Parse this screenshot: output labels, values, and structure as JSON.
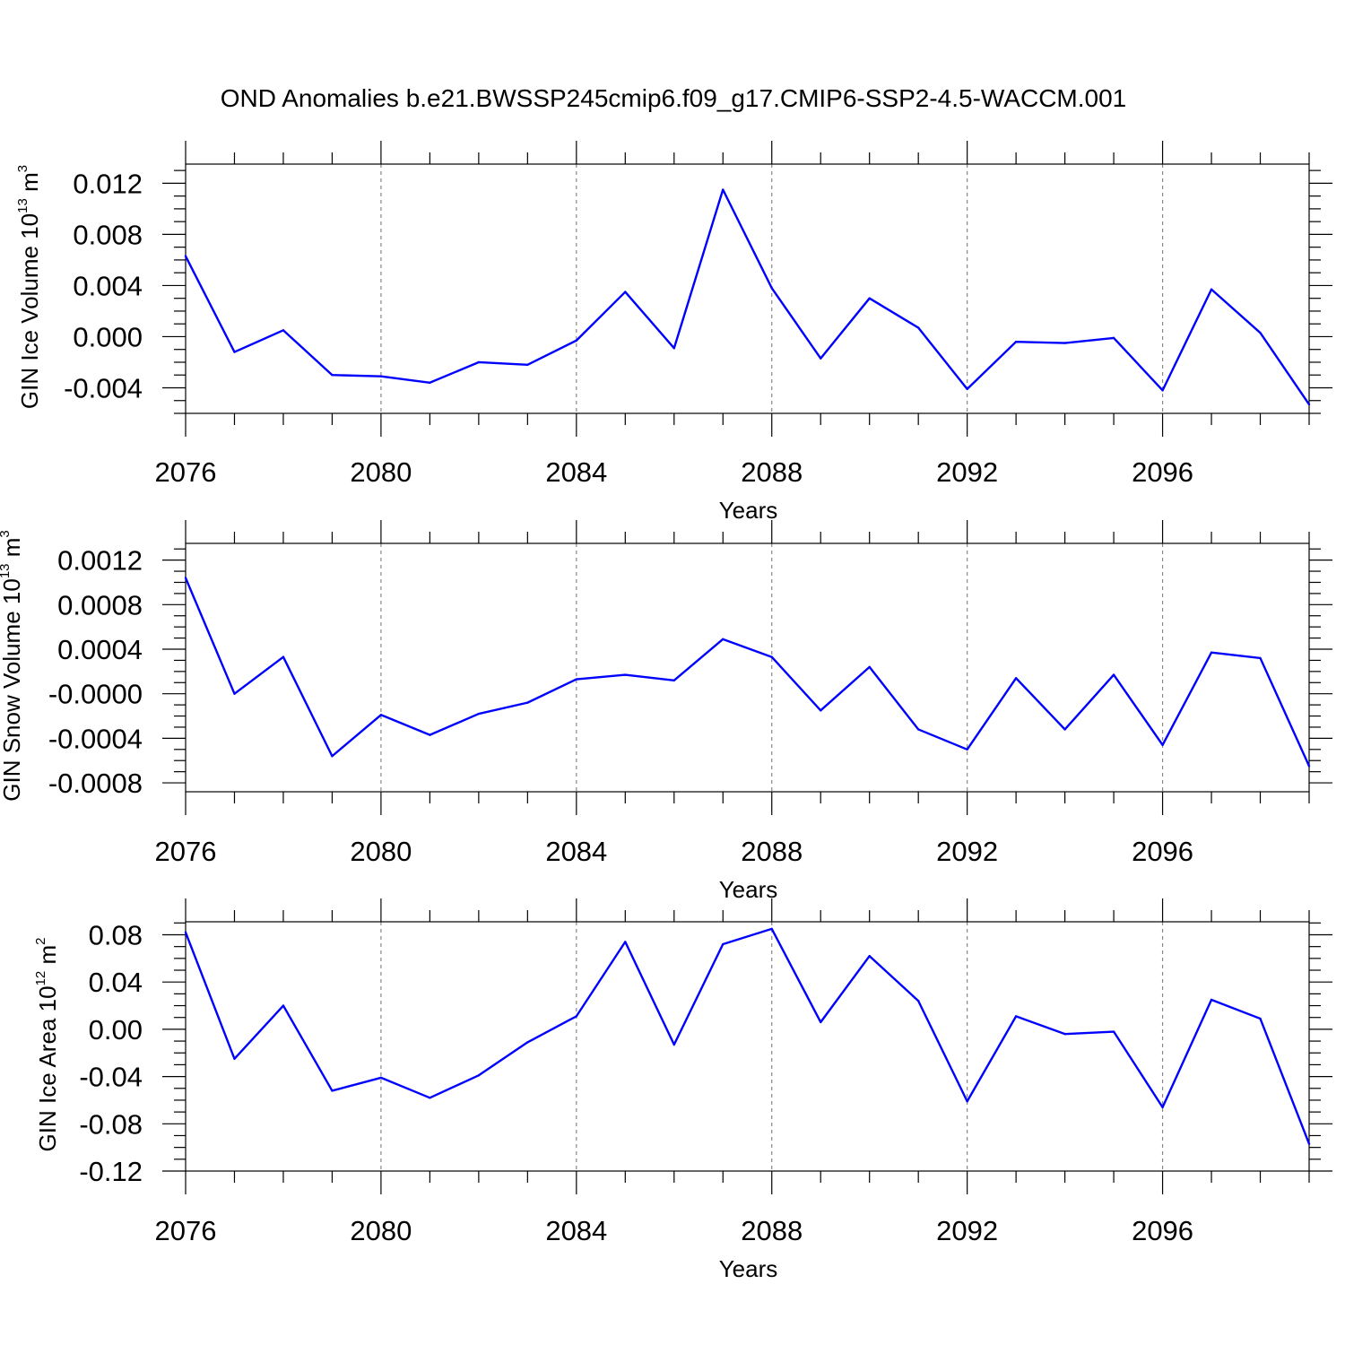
{
  "title": "OND Anomalies b.e21.BWSSP245cmip6.f09_g17.CMIP6-SSP2-4.5-WACCM.001",
  "chart_data": [
    {
      "type": "line",
      "panel": "ice-volume",
      "ylabel_main": "GIN Ice Volume 10",
      "ylabel_exp": "13",
      "ylabel_unit": " m",
      "ylabel_unit_exp": "3",
      "xlabel": "Years",
      "x": [
        2076,
        2077,
        2078,
        2079,
        2080,
        2081,
        2082,
        2083,
        2084,
        2085,
        2086,
        2087,
        2088,
        2089,
        2090,
        2091,
        2092,
        2093,
        2094,
        2095,
        2096,
        2097,
        2098,
        2099
      ],
      "values": [
        0.0063,
        -0.0012,
        0.0005,
        -0.003,
        -0.0031,
        -0.0036,
        -0.002,
        -0.0022,
        -0.0003,
        0.0035,
        -0.0009,
        0.0115,
        0.0038,
        -0.0017,
        0.003,
        0.0007,
        -0.0041,
        -0.0004,
        -0.0005,
        -0.0001,
        -0.0042,
        0.0037,
        0.0003,
        -0.0053
      ],
      "xlim": [
        2076,
        2099
      ],
      "ylim": [
        -0.006,
        0.0135
      ],
      "xticks": [
        2076,
        2080,
        2084,
        2088,
        2092,
        2096
      ],
      "xtick_labels": [
        "2076",
        "2080",
        "2084",
        "2088",
        "2092",
        "2096"
      ],
      "yticks": [
        -0.004,
        0.0,
        0.004,
        0.008,
        0.012
      ],
      "ytick_labels": [
        "-0.004",
        "0.000",
        "0.004",
        "0.008",
        "0.012"
      ],
      "yminor": 0.001
    },
    {
      "type": "line",
      "panel": "snow-volume",
      "ylabel_main": "GIN Snow Volume 10",
      "ylabel_exp": "13",
      "ylabel_unit": " m",
      "ylabel_unit_exp": "3",
      "xlabel": "Years",
      "x": [
        2076,
        2077,
        2078,
        2079,
        2080,
        2081,
        2082,
        2083,
        2084,
        2085,
        2086,
        2087,
        2088,
        2089,
        2090,
        2091,
        2092,
        2093,
        2094,
        2095,
        2096,
        2097,
        2098,
        2099
      ],
      "values": [
        0.00104,
        0.0,
        0.00033,
        -0.00056,
        -0.00019,
        -0.00037,
        -0.00018,
        -8e-05,
        0.00013,
        0.00017,
        0.00012,
        0.00049,
        0.00033,
        -0.00015,
        0.00024,
        -0.00032,
        -0.0005,
        0.00014,
        -0.00032,
        0.00017,
        -0.00046,
        0.00037,
        0.00032,
        -0.00065
      ],
      "xlim": [
        2076,
        2099
      ],
      "ylim": [
        -0.00088,
        0.00135
      ],
      "xticks": [
        2076,
        2080,
        2084,
        2088,
        2092,
        2096
      ],
      "xtick_labels": [
        "2076",
        "2080",
        "2084",
        "2088",
        "2092",
        "2096"
      ],
      "yticks": [
        -0.0008,
        -0.0004,
        0.0,
        0.0004,
        0.0008,
        0.0012
      ],
      "ytick_labels": [
        "-0.0008",
        "-0.0004",
        "-0.0000",
        "0.0004",
        "0.0008",
        "0.0012"
      ],
      "yminor": 0.0001
    },
    {
      "type": "line",
      "panel": "ice-area",
      "ylabel_main": "GIN Ice Area 10",
      "ylabel_exp": "12",
      "ylabel_unit": " m",
      "ylabel_unit_exp": "2",
      "xlabel": "Years",
      "x": [
        2076,
        2077,
        2078,
        2079,
        2080,
        2081,
        2082,
        2083,
        2084,
        2085,
        2086,
        2087,
        2088,
        2089,
        2090,
        2091,
        2092,
        2093,
        2094,
        2095,
        2096,
        2097,
        2098,
        2099
      ],
      "values": [
        0.082,
        -0.025,
        0.02,
        -0.052,
        -0.041,
        -0.058,
        -0.039,
        -0.011,
        0.011,
        0.074,
        -0.013,
        0.072,
        0.085,
        0.006,
        0.062,
        0.024,
        -0.061,
        0.011,
        -0.004,
        -0.002,
        -0.066,
        0.025,
        0.009,
        -0.097
      ],
      "xlim": [
        2076,
        2099
      ],
      "ylim": [
        -0.12,
        0.091
      ],
      "xticks": [
        2076,
        2080,
        2084,
        2088,
        2092,
        2096
      ],
      "xtick_labels": [
        "2076",
        "2080",
        "2084",
        "2088",
        "2092",
        "2096"
      ],
      "yticks": [
        -0.12,
        -0.08,
        -0.04,
        0.0,
        0.04,
        0.08
      ],
      "ytick_labels": [
        "-0.12",
        "-0.08",
        "-0.04",
        "0.00",
        "0.04",
        "0.08"
      ],
      "yminor": 0.01
    }
  ]
}
